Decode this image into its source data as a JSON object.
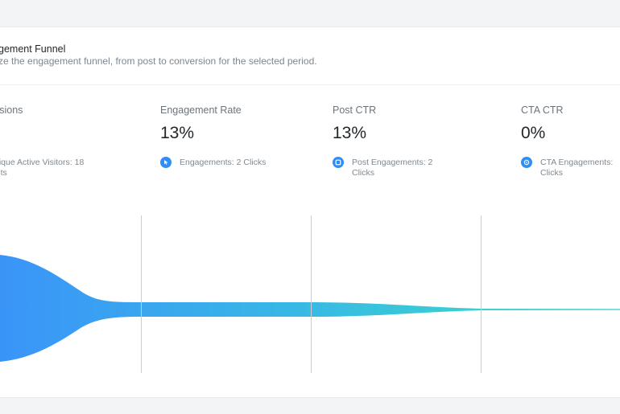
{
  "card": {
    "title": "gement Funnel",
    "subtitle": "ze the engagement funnel, from post to conversion for the selected period."
  },
  "metrics": [
    {
      "label": "ssions",
      "value": "",
      "sub": "nique Active Visitors: 18 sits",
      "icon": ""
    },
    {
      "label": "Engagement Rate",
      "value": "13%",
      "sub": "Engagements: 2 Clicks",
      "icon": "cursor-icon"
    },
    {
      "label": "Post CTR",
      "value": "13%",
      "sub": "Post Engagements: 2 Clicks",
      "icon": "post-icon"
    },
    {
      "label": "CTA CTR",
      "value": "0%",
      "sub": "CTA Engagements: Clicks",
      "icon": "target-icon"
    }
  ],
  "colors": {
    "funnel_start": "#3a94f8",
    "funnel_end": "#38d0d0",
    "icon_bg": "#2f8ef5"
  }
}
